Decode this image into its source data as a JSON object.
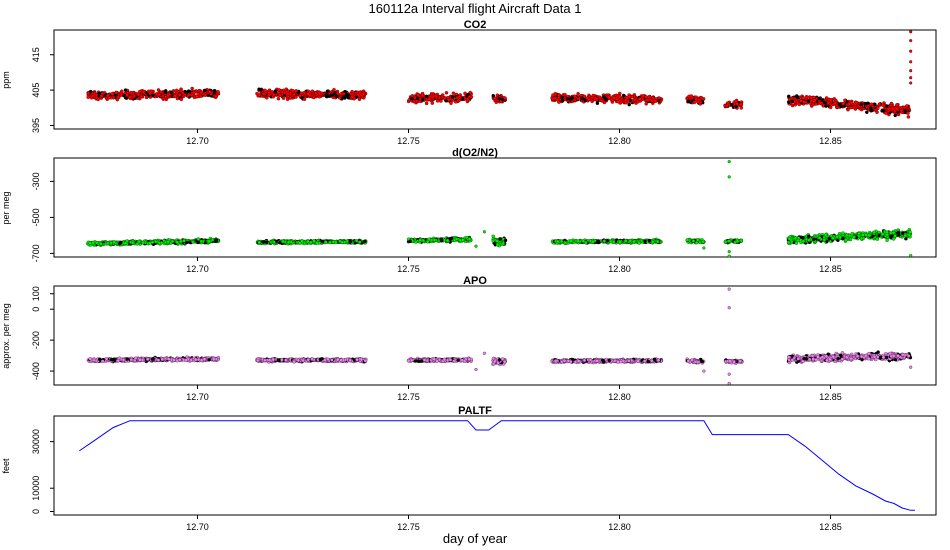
{
  "title": "160112a   Interval flight Aircraft Data 1",
  "xlabel": "day of year",
  "colors": {
    "co2": "#ff0000",
    "o2n2": "#00ee00",
    "apo": "#ee82ee",
    "paltf": "#0000ff",
    "outline": "#000000"
  },
  "chart_data": [
    {
      "type": "scatter",
      "title": "CO2",
      "ylabel": "ppm",
      "xlim": [
        12.666,
        12.875
      ],
      "ylim": [
        394,
        422
      ],
      "xticks": [
        12.7,
        12.75,
        12.8,
        12.85
      ],
      "xtick_labels": [
        "12.70",
        "12.75",
        "12.80",
        "12.85"
      ],
      "yticks": [
        395,
        405,
        415
      ],
      "ytick_labels": [
        "395",
        "405",
        "415"
      ],
      "segments": [
        {
          "x": [
            12.674,
            12.705
          ],
          "y": [
            403.5,
            404.0
          ],
          "spread": 1.2
        },
        {
          "x": [
            12.714,
            12.74
          ],
          "y": [
            404.0,
            403.5
          ],
          "spread": 1.2
        },
        {
          "x": [
            12.75,
            12.765
          ],
          "y": [
            402.5,
            403.0
          ],
          "spread": 1.2
        },
        {
          "x": [
            12.77,
            12.773
          ],
          "y": [
            402.5,
            402.5
          ],
          "spread": 1.0
        },
        {
          "x": [
            12.784,
            12.81
          ],
          "y": [
            402.8,
            402.3
          ],
          "spread": 1.1
        },
        {
          "x": [
            12.816,
            12.82
          ],
          "y": [
            402.5,
            402.0
          ],
          "spread": 1.0
        },
        {
          "x": [
            12.825,
            12.829
          ],
          "y": [
            401.0,
            401.0
          ],
          "spread": 1.0
        },
        {
          "x": [
            12.84,
            12.869
          ],
          "y": [
            402.5,
            399.0
          ],
          "spread": 1.4
        }
      ],
      "outliers": [
        [
          12.869,
          421.5
        ],
        [
          12.869,
          419.0
        ],
        [
          12.869,
          416.0
        ],
        [
          12.869,
          413.0
        ],
        [
          12.869,
          410.5
        ],
        [
          12.869,
          408.5
        ],
        [
          12.869,
          407.0
        ]
      ]
    },
    {
      "type": "scatter",
      "title": "d(O2/N2)",
      "ylabel": "per meg",
      "xlim": [
        12.666,
        12.875
      ],
      "ylim": [
        -720,
        -170
      ],
      "xticks": [
        12.7,
        12.75,
        12.8,
        12.85
      ],
      "xtick_labels": [
        "12.70",
        "12.75",
        "12.80",
        "12.85"
      ],
      "yticks": [
        -700,
        -500,
        -300
      ],
      "ytick_labels": [
        "-700",
        "-500",
        "-300"
      ],
      "segments": [
        {
          "x": [
            12.674,
            12.705
          ],
          "y": [
            -645,
            -630
          ],
          "spread": 10
        },
        {
          "x": [
            12.714,
            12.74
          ],
          "y": [
            -638,
            -635
          ],
          "spread": 8
        },
        {
          "x": [
            12.75,
            12.765
          ],
          "y": [
            -630,
            -622
          ],
          "spread": 10
        },
        {
          "x": [
            12.77,
            12.773
          ],
          "y": [
            -630,
            -640
          ],
          "spread": 22
        },
        {
          "x": [
            12.784,
            12.81
          ],
          "y": [
            -635,
            -632
          ],
          "spread": 8
        },
        {
          "x": [
            12.816,
            12.82
          ],
          "y": [
            -628,
            -635
          ],
          "spread": 10
        },
        {
          "x": [
            12.825,
            12.829
          ],
          "y": [
            -632,
            -632
          ],
          "spread": 8
        },
        {
          "x": [
            12.84,
            12.869
          ],
          "y": [
            -625,
            -590
          ],
          "spread": 22
        }
      ],
      "outliers": [
        [
          12.826,
          -190
        ],
        [
          12.826,
          -275
        ],
        [
          12.826,
          -690
        ],
        [
          12.826,
          -715
        ],
        [
          12.766,
          -660
        ],
        [
          12.82,
          -670
        ],
        [
          12.869,
          -712
        ],
        [
          12.768,
          -580
        ]
      ]
    },
    {
      "type": "scatter",
      "title": "APO",
      "ylabel": "approx. per meg",
      "xlim": [
        12.666,
        12.875
      ],
      "ylim": [
        -490,
        150
      ],
      "xticks": [
        12.7,
        12.75,
        12.8,
        12.85
      ],
      "xtick_labels": [
        "12.70",
        "12.75",
        "12.80",
        "12.85"
      ],
      "yticks": [
        -400,
        -200,
        0,
        100
      ],
      "ytick_labels": [
        "-400",
        "-200",
        "0",
        "100"
      ],
      "segments": [
        {
          "x": [
            12.674,
            12.705
          ],
          "y": [
            -330,
            -322
          ],
          "spread": 10
        },
        {
          "x": [
            12.714,
            12.74
          ],
          "y": [
            -328,
            -330
          ],
          "spread": 9
        },
        {
          "x": [
            12.75,
            12.765
          ],
          "y": [
            -330,
            -328
          ],
          "spread": 9
        },
        {
          "x": [
            12.77,
            12.773
          ],
          "y": [
            -330,
            -340
          ],
          "spread": 22
        },
        {
          "x": [
            12.784,
            12.81
          ],
          "y": [
            -335,
            -333
          ],
          "spread": 9
        },
        {
          "x": [
            12.816,
            12.82
          ],
          "y": [
            -332,
            -338
          ],
          "spread": 10
        },
        {
          "x": [
            12.825,
            12.829
          ],
          "y": [
            -338,
            -338
          ],
          "spread": 9
        },
        {
          "x": [
            12.84,
            12.869
          ],
          "y": [
            -322,
            -300
          ],
          "spread": 22
        }
      ],
      "outliers": [
        [
          12.826,
          130
        ],
        [
          12.826,
          10
        ],
        [
          12.826,
          -420
        ],
        [
          12.826,
          -480
        ],
        [
          12.768,
          -285
        ],
        [
          12.766,
          -390
        ],
        [
          12.82,
          -400
        ],
        [
          12.869,
          -375
        ]
      ]
    },
    {
      "type": "line",
      "title": "PALTF",
      "ylabel": "feet",
      "xlim": [
        12.666,
        12.875
      ],
      "ylim": [
        -1500,
        41000
      ],
      "xticks": [
        12.7,
        12.75,
        12.8,
        12.85
      ],
      "xtick_labels": [
        "12.70",
        "12.75",
        "12.80",
        "12.85"
      ],
      "yticks": [
        0,
        10000,
        30000
      ],
      "ytick_labels": [
        "0",
        "10000",
        "30000"
      ],
      "x": [
        12.672,
        12.676,
        12.68,
        12.684,
        12.688,
        12.764,
        12.766,
        12.769,
        12.772,
        12.82,
        12.822,
        12.84,
        12.844,
        12.848,
        12.852,
        12.856,
        12.86,
        12.863,
        12.865,
        12.867,
        12.869,
        12.87
      ],
      "y": [
        26000,
        31000,
        36000,
        39000,
        39000,
        39000,
        35000,
        35000,
        39000,
        39000,
        33000,
        33000,
        28000,
        22000,
        16000,
        11000,
        7500,
        4500,
        3500,
        1500,
        500,
        500
      ]
    }
  ]
}
